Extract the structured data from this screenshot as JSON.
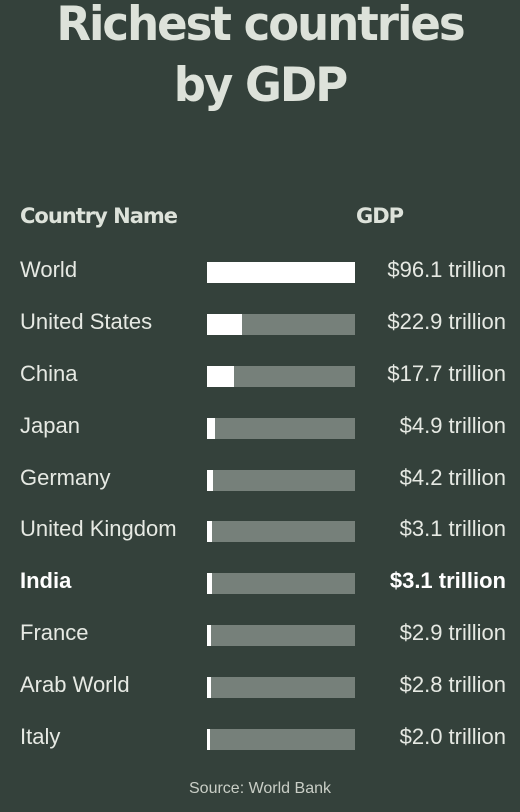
{
  "chart_data": {
    "type": "bar",
    "orientation": "horizontal",
    "title_lines": [
      "Richest countries",
      "by GDP"
    ],
    "column_headers": {
      "country": "Country Name",
      "gdp": "GDP"
    },
    "unit": "trillion USD",
    "categories": [
      "World",
      "United States",
      "China",
      "Japan",
      "Germany",
      "United Kingdom",
      "India",
      "France",
      "Arab World",
      "Italy"
    ],
    "values": [
      96.1,
      22.9,
      17.7,
      4.9,
      4.2,
      3.1,
      3.1,
      2.9,
      2.8,
      2.0
    ],
    "value_labels": [
      "$96.1 trillion",
      "$22.9 trillion",
      "$17.7 trillion",
      "$4.9 trillion",
      "$4.2 trillion",
      "$3.1 trillion",
      "$3.1 trillion",
      "$2.9 trillion",
      "$2.8 trillion",
      "$2.0 trillion"
    ],
    "highlighted": [
      "India"
    ],
    "xlim": [
      0,
      96.1
    ],
    "source": "Source: World Bank",
    "colors": {
      "background": "#34413b",
      "bar_fill": "#ffffff",
      "bar_track": "#76807a",
      "text": "#e6e9e3"
    }
  }
}
